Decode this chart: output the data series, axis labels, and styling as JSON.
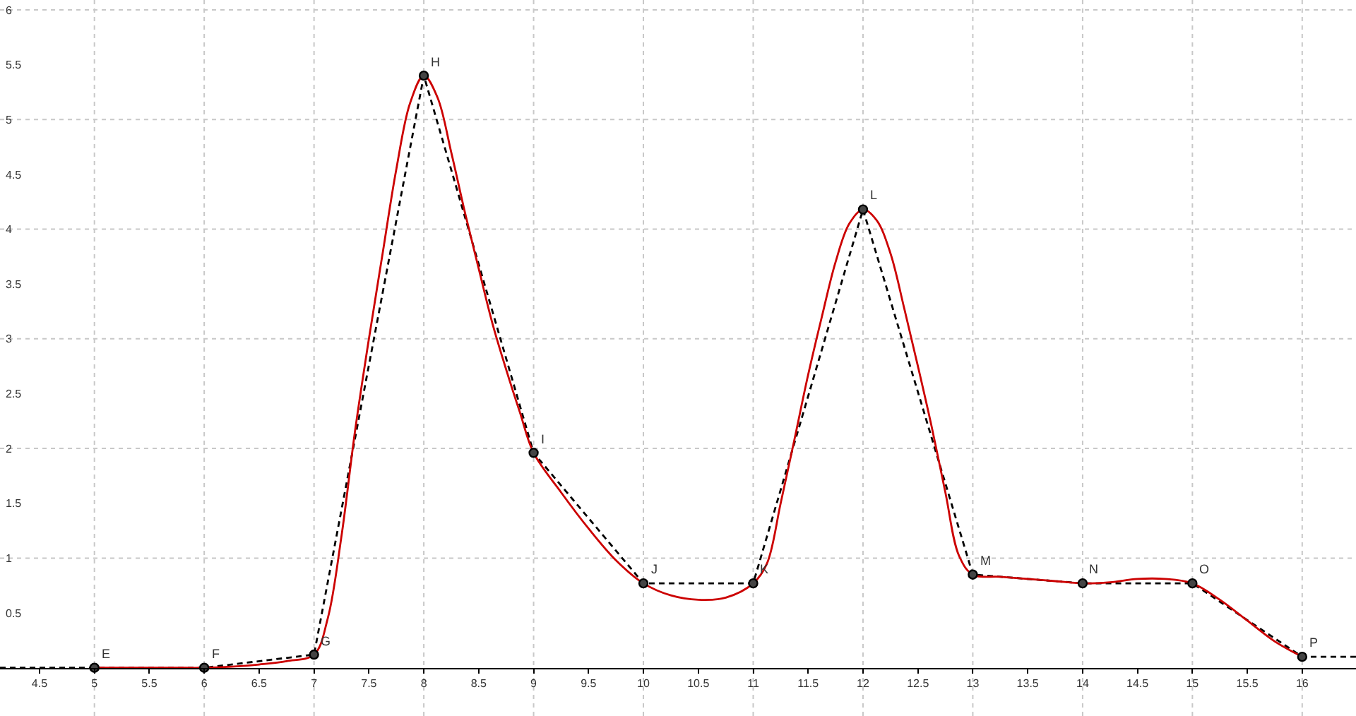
{
  "chart_data": {
    "type": "line",
    "xlim": [
      4.14,
      16.49
    ],
    "ylim": [
      -0.44,
      6.09
    ],
    "xticks": [
      4.5,
      5,
      5.5,
      6,
      6.5,
      7,
      7.5,
      8,
      8.5,
      9,
      9.5,
      10,
      10.5,
      11,
      11.5,
      12,
      12.5,
      13,
      13.5,
      14,
      14.5,
      15,
      15.5,
      16
    ],
    "yticks": [
      0.5,
      1,
      1.5,
      2,
      2.5,
      3,
      3.5,
      4,
      4.5,
      5,
      5.5,
      6
    ],
    "grid": true,
    "series": [
      {
        "type": "line",
        "color": "#000000",
        "line_style": "dashed",
        "marker": "none",
        "x": [
          4.14,
          5,
          6,
          7,
          8,
          9,
          10,
          11,
          12,
          13,
          14,
          15,
          16,
          16.49
        ],
        "values": [
          0,
          0,
          0,
          0.12,
          5.4,
          1.96,
          0.77,
          0.77,
          4.18,
          0.85,
          0.77,
          0.77,
          0.1,
          0.1
        ]
      },
      {
        "type": "line",
        "color": "#cc0000",
        "line_style": "solid",
        "marker": "none",
        "x": [
          5,
          5.25,
          5.5,
          5.75,
          6,
          6.25,
          6.5,
          6.75,
          7,
          7.125,
          7.25,
          7.375,
          7.5,
          7.625,
          7.75,
          7.875,
          8,
          8.125,
          8.25,
          8.375,
          8.5,
          8.625,
          8.75,
          8.875,
          9,
          9.25,
          9.5,
          9.75,
          10,
          10.25,
          10.5,
          10.75,
          11,
          11.125,
          11.25,
          11.375,
          11.5,
          11.625,
          11.75,
          11.875,
          12,
          12.125,
          12.25,
          12.375,
          12.5,
          12.625,
          12.75,
          12.875,
          13,
          13.25,
          13.5,
          13.75,
          14,
          14.25,
          14.5,
          14.75,
          15,
          15.25,
          15.5,
          15.75,
          16
        ],
        "values": [
          0,
          0,
          0,
          0,
          0,
          0.01,
          0.03,
          0.06,
          0.12,
          0.45,
          1.2,
          2.17,
          3.0,
          3.78,
          4.55,
          5.15,
          5.4,
          5.2,
          4.7,
          4.15,
          3.64,
          3.14,
          2.72,
          2.33,
          1.96,
          1.6,
          1.27,
          0.98,
          0.77,
          0.66,
          0.62,
          0.64,
          0.77,
          0.95,
          1.5,
          2.08,
          2.67,
          3.2,
          3.7,
          4.05,
          4.18,
          4.08,
          3.78,
          3.28,
          2.75,
          2.2,
          1.6,
          1.02,
          0.85,
          0.83,
          0.81,
          0.79,
          0.77,
          0.78,
          0.81,
          0.81,
          0.77,
          0.62,
          0.43,
          0.24,
          0.1
        ]
      },
      {
        "type": "scatter",
        "color": "#444444",
        "marker": "circle",
        "x": [
          5,
          6,
          7,
          8,
          9,
          10,
          11,
          12,
          13,
          14,
          15,
          16
        ],
        "values": [
          0,
          0,
          0.12,
          5.4,
          1.96,
          0.77,
          0.77,
          4.18,
          0.85,
          0.77,
          0.77,
          0.1
        ]
      }
    ],
    "annotations": [
      {
        "text": "E",
        "x": 5,
        "y": 0
      },
      {
        "text": "F",
        "x": 6,
        "y": 0
      },
      {
        "text": "G",
        "x": 7,
        "y": 0.12
      },
      {
        "text": "H",
        "x": 8,
        "y": 5.4
      },
      {
        "text": "I",
        "x": 9,
        "y": 1.96
      },
      {
        "text": "J",
        "x": 10,
        "y": 0.77
      },
      {
        "text": "K",
        "x": 11,
        "y": 0.77
      },
      {
        "text": "L",
        "x": 12,
        "y": 4.18
      },
      {
        "text": "M",
        "x": 13,
        "y": 0.85
      },
      {
        "text": "N",
        "x": 14,
        "y": 0.77
      },
      {
        "text": "O",
        "x": 15,
        "y": 0.77
      },
      {
        "text": "P",
        "x": 16,
        "y": 0.1
      }
    ]
  }
}
